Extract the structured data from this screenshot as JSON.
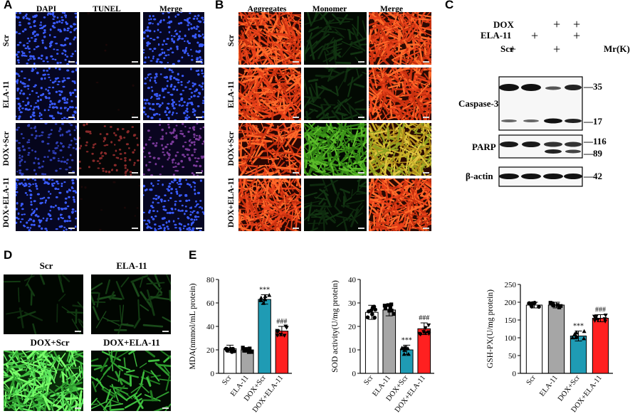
{
  "panels": {
    "A": {
      "letter": "A",
      "columns": [
        "DAPI",
        "TUNEL",
        "Merge"
      ],
      "rows": [
        "Scr",
        "ELA-11",
        "DOX+Scr",
        "DOX+ELA-11"
      ]
    },
    "B": {
      "letter": "B",
      "columns": [
        "Aggregates",
        "Monomer",
        "Merge"
      ],
      "rows": [
        "Scr",
        "ELA-11",
        "DOX+Scr",
        "DOX+ELA-11"
      ]
    },
    "C": {
      "letter": "C",
      "treatments": [
        {
          "name": "DOX",
          "marks": [
            "",
            "",
            "+",
            "+"
          ]
        },
        {
          "name": "ELA-11",
          "marks": [
            "",
            "+",
            "",
            "+"
          ]
        },
        {
          "name": "Scr",
          "marks": [
            "+",
            "",
            "+",
            ""
          ]
        }
      ],
      "mr_label": "Mr(K)",
      "blots": [
        {
          "name": "Caspase-3",
          "sizes": [
            "35",
            "17"
          ]
        },
        {
          "name": "PARP",
          "sizes": [
            "116",
            "89"
          ]
        },
        {
          "name": "β-actin",
          "sizes": [
            "42"
          ]
        }
      ]
    },
    "D": {
      "letter": "D",
      "tiles": [
        "Scr",
        "ELA-11",
        "DOX+Scr",
        "DOX+ELA-11"
      ]
    },
    "E": {
      "letter": "E"
    }
  },
  "chart_data": [
    {
      "type": "bar",
      "categories": [
        "Scr",
        "ELA-11",
        "DOX+Scr",
        "DOX+ELA-11"
      ],
      "values": [
        21,
        20,
        63,
        36
      ],
      "errors": [
        3,
        2,
        4,
        4
      ],
      "ylabel": "MDA(nmmol/mL protein)",
      "ylim": [
        0,
        80
      ],
      "yticks": [
        0,
        20,
        40,
        60,
        80
      ],
      "annotations": [
        "",
        "",
        "***",
        "###"
      ],
      "colors": [
        "#ffffff",
        "#a6a6a6",
        "#1f9bb4",
        "#ff2020"
      ]
    },
    {
      "type": "bar",
      "categories": [
        "Scr",
        "ELA-11",
        "DOX+Scr",
        "DOX+ELA-11"
      ],
      "values": [
        26,
        27,
        10,
        19
      ],
      "errors": [
        3,
        2.5,
        2,
        2.5
      ],
      "ylabel": "SOD activity(U/mg protein)",
      "ylim": [
        0,
        40
      ],
      "yticks": [
        0,
        10,
        20,
        30,
        40
      ],
      "annotations": [
        "",
        "",
        "***",
        "###"
      ],
      "colors": [
        "#ffffff",
        "#a6a6a6",
        "#1f9bb4",
        "#ff2020"
      ]
    },
    {
      "type": "bar",
      "categories": [
        "Scr",
        "ELA-11",
        "DOX+Scr",
        "DOX+ELA-11"
      ],
      "values": [
        192,
        192,
        105,
        155
      ],
      "errors": [
        8,
        8,
        14,
        10
      ],
      "ylabel": "GSH-PX(U/mg protein)",
      "ylim": [
        0,
        250
      ],
      "yticks": [
        0,
        50,
        100,
        150,
        200,
        250
      ],
      "annotations": [
        "",
        "",
        "***",
        "###"
      ],
      "colors": [
        "#ffffff",
        "#a6a6a6",
        "#1f9bb4",
        "#ff2020"
      ]
    }
  ]
}
